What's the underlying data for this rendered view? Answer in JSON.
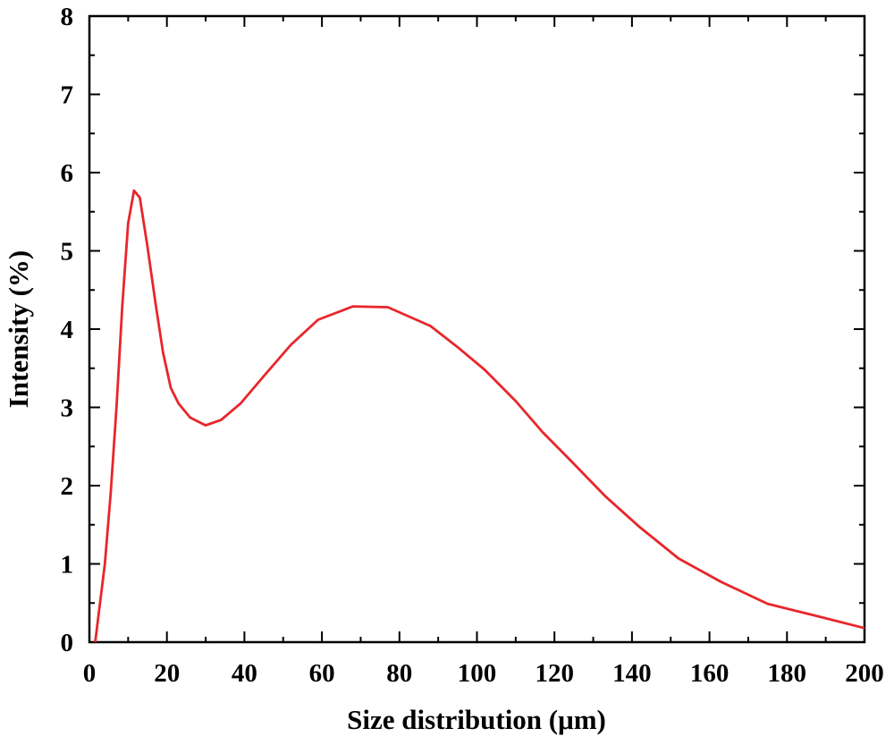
{
  "chart_data": {
    "type": "line",
    "xlabel": "Size distribution (μm)",
    "ylabel": "Intensity (%)",
    "xlim": [
      0,
      200
    ],
    "ylim": [
      0,
      8
    ],
    "xticks": [
      0,
      20,
      40,
      60,
      80,
      100,
      120,
      140,
      160,
      180,
      200
    ],
    "yticks": [
      0,
      1,
      2,
      3,
      4,
      5,
      6,
      7,
      8
    ],
    "grid": false,
    "series": [
      {
        "color": "#e8262b",
        "x": [
          1.5,
          2.5,
          4,
          5.5,
          7,
          8.5,
          10,
          11.5,
          13,
          15,
          17,
          19,
          21,
          23,
          26,
          30,
          34,
          39,
          45,
          52,
          59,
          68,
          77,
          88,
          95,
          102,
          110,
          117,
          124,
          133,
          142,
          152,
          163,
          175,
          188,
          200
        ],
        "y": [
          0.0,
          0.4,
          1.0,
          1.9,
          3.0,
          4.3,
          5.35,
          5.77,
          5.68,
          5.05,
          4.35,
          3.7,
          3.25,
          3.05,
          2.87,
          2.77,
          2.84,
          3.05,
          3.4,
          3.8,
          4.12,
          4.29,
          4.28,
          4.04,
          3.77,
          3.48,
          3.08,
          2.68,
          2.33,
          1.87,
          1.47,
          1.07,
          0.77,
          0.49,
          0.33,
          0.18
        ]
      }
    ]
  }
}
